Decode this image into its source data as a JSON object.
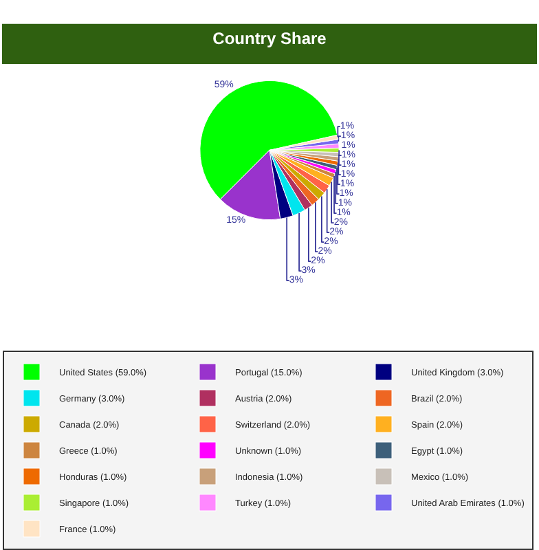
{
  "chart_data": {
    "type": "pie",
    "title": "Country Share",
    "categories": [
      "United States (59.0%)",
      "Portugal (15.0%)",
      "United Kingdom (3.0%)",
      "Germany (3.0%)",
      "Austria (2.0%)",
      "Brazil (2.0%)",
      "Canada (2.0%)",
      "Switzerland (2.0%)",
      "Spain (2.0%)",
      "Greece (1.0%)",
      "Unknown (1.0%)",
      "Egypt (1.0%)",
      "Honduras (1.0%)",
      "Indonesia (1.0%)",
      "Mexico (1.0%)",
      "Singapore (1.0%)",
      "Turkey (1.0%)",
      "United Arab Emirates (1.0%)",
      "France (1.0%)"
    ],
    "values": [
      59,
      15,
      3,
      3,
      2,
      2,
      2,
      2,
      2,
      1,
      1,
      1,
      1,
      1,
      1,
      1,
      1,
      1,
      1
    ],
    "value_labels": [
      "59%",
      "15%",
      "3%",
      "3%",
      "2%",
      "2%",
      "2%",
      "2%",
      "2%",
      "1%",
      "1%",
      "1%",
      "1%",
      "1%",
      "1%",
      "1%",
      "1%",
      "1%",
      "1%"
    ],
    "colors": [
      "#00ff00",
      "#9933cc",
      "#000080",
      "#00e5ee",
      "#b03060",
      "#ee6622",
      "#ccaa00",
      "#ff6347",
      "#ffb020",
      "#cd853f",
      "#ff00ff",
      "#3d5f7a",
      "#ee6a00",
      "#c8a07a",
      "#c8c0b8",
      "#aaee33",
      "#ff88ff",
      "#7766ee",
      "#ffe4c4"
    ],
    "legend": "bottom"
  }
}
